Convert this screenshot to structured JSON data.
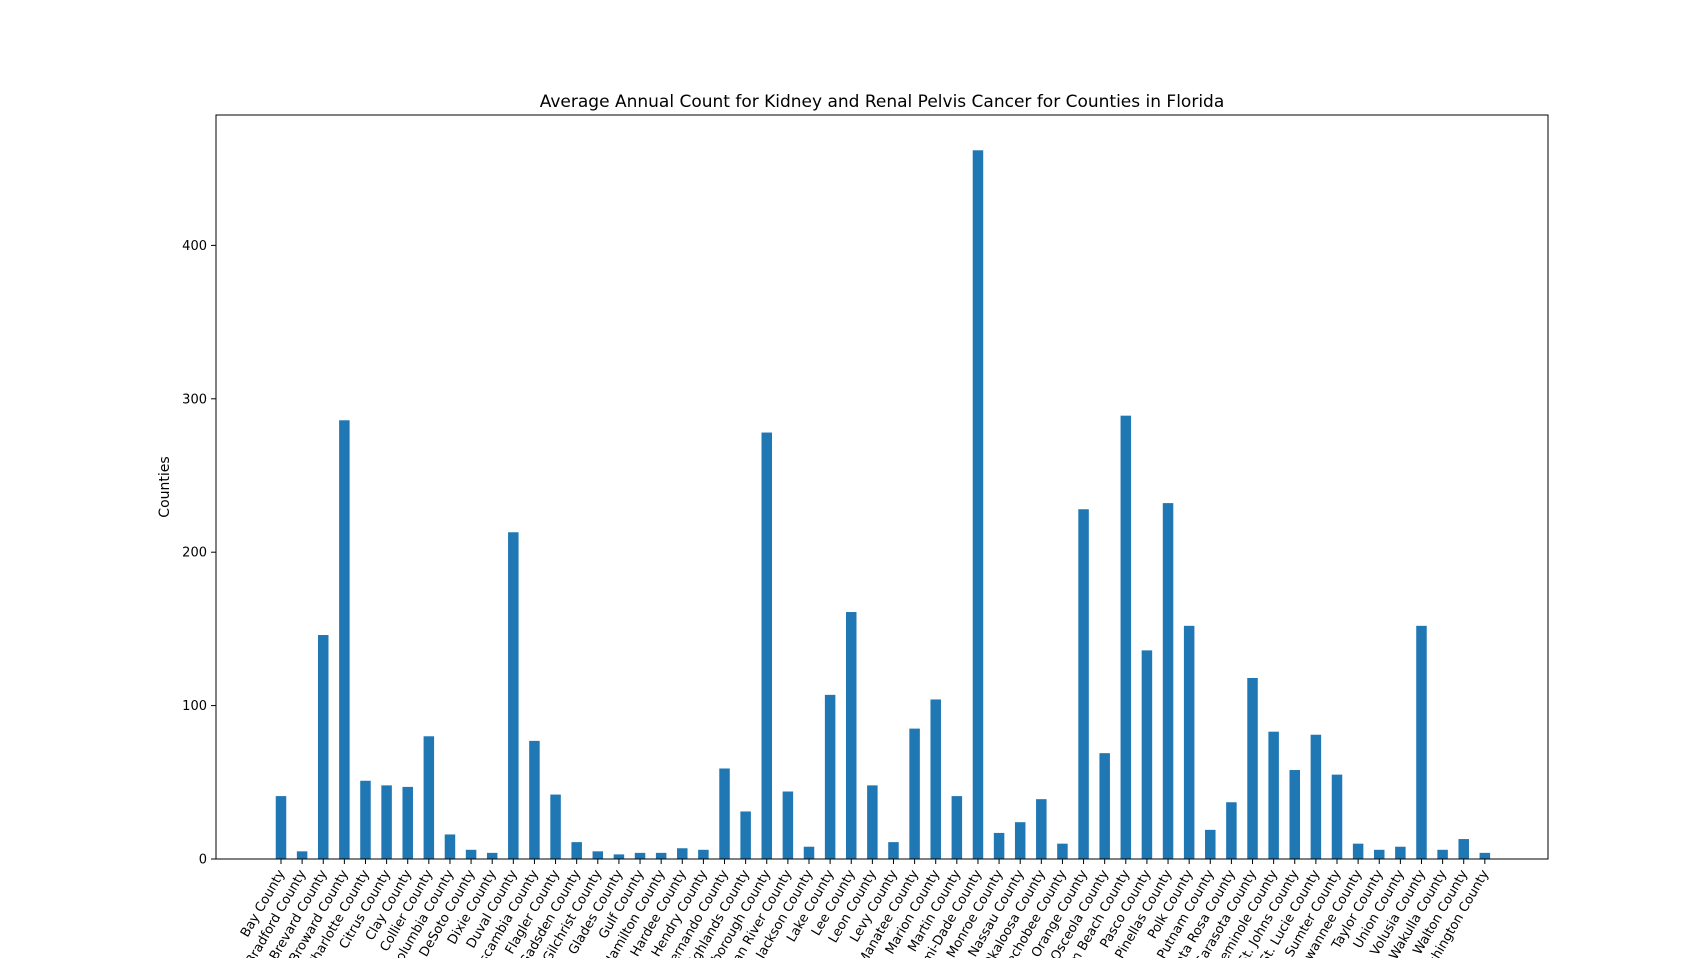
{
  "chart_data": {
    "type": "bar",
    "title": "Average Annual Count for Kidney and Renal Pelvis Cancer for Counties in Florida",
    "xlabel": "",
    "ylabel": "Counties",
    "ylim": [
      0,
      485
    ],
    "yticks": [
      0,
      100,
      200,
      300,
      400
    ],
    "grid": false,
    "legend": "none",
    "bar_color": "#1f77b4",
    "categories": [
      "Bay County",
      "Bradford County",
      "Brevard County",
      "Broward County",
      "Charlotte County",
      "Citrus County",
      "Clay County",
      "Collier County",
      "Columbia County",
      "DeSoto County",
      "Dixie County",
      "Duval County",
      "Escambia County",
      "Flagler County",
      "Gadsden County",
      "Gilchrist County",
      "Glades County",
      "Gulf County",
      "Hamilton County",
      "Hardee County",
      "Hendry County",
      "Hernando County",
      "Highlands County",
      "Hillsborough County",
      "Indian River County",
      "Jackson County",
      "Lake County",
      "Lee County",
      "Leon County",
      "Levy County",
      "Manatee County",
      "Marion County",
      "Martin County",
      "Miami-Dade County",
      "Monroe County",
      "Nassau County",
      "Okaloosa County",
      "Okeechobee County",
      "Orange County",
      "Osceola County",
      "Palm Beach County",
      "Pasco County",
      "Pinellas County",
      "Polk County",
      "Putnam County",
      "Santa Rosa County",
      "Sarasota County",
      "Seminole County",
      "St. Johns County",
      "St. Lucie County",
      "Sumter County",
      "Suwannee County",
      "Taylor County",
      "Union County",
      "Volusia County",
      "Wakulla County",
      "Walton County",
      "Washington County"
    ],
    "values": [
      41,
      5,
      146,
      286,
      51,
      48,
      47,
      80,
      16,
      6,
      4,
      213,
      77,
      42,
      11,
      5,
      3,
      4,
      4,
      7,
      6,
      59,
      31,
      278,
      44,
      8,
      107,
      161,
      48,
      11,
      85,
      104,
      41,
      462,
      17,
      24,
      39,
      10,
      228,
      69,
      289,
      136,
      232,
      152,
      19,
      37,
      118,
      83,
      58,
      81,
      55,
      10,
      6,
      8,
      152,
      6,
      13,
      4
    ]
  }
}
